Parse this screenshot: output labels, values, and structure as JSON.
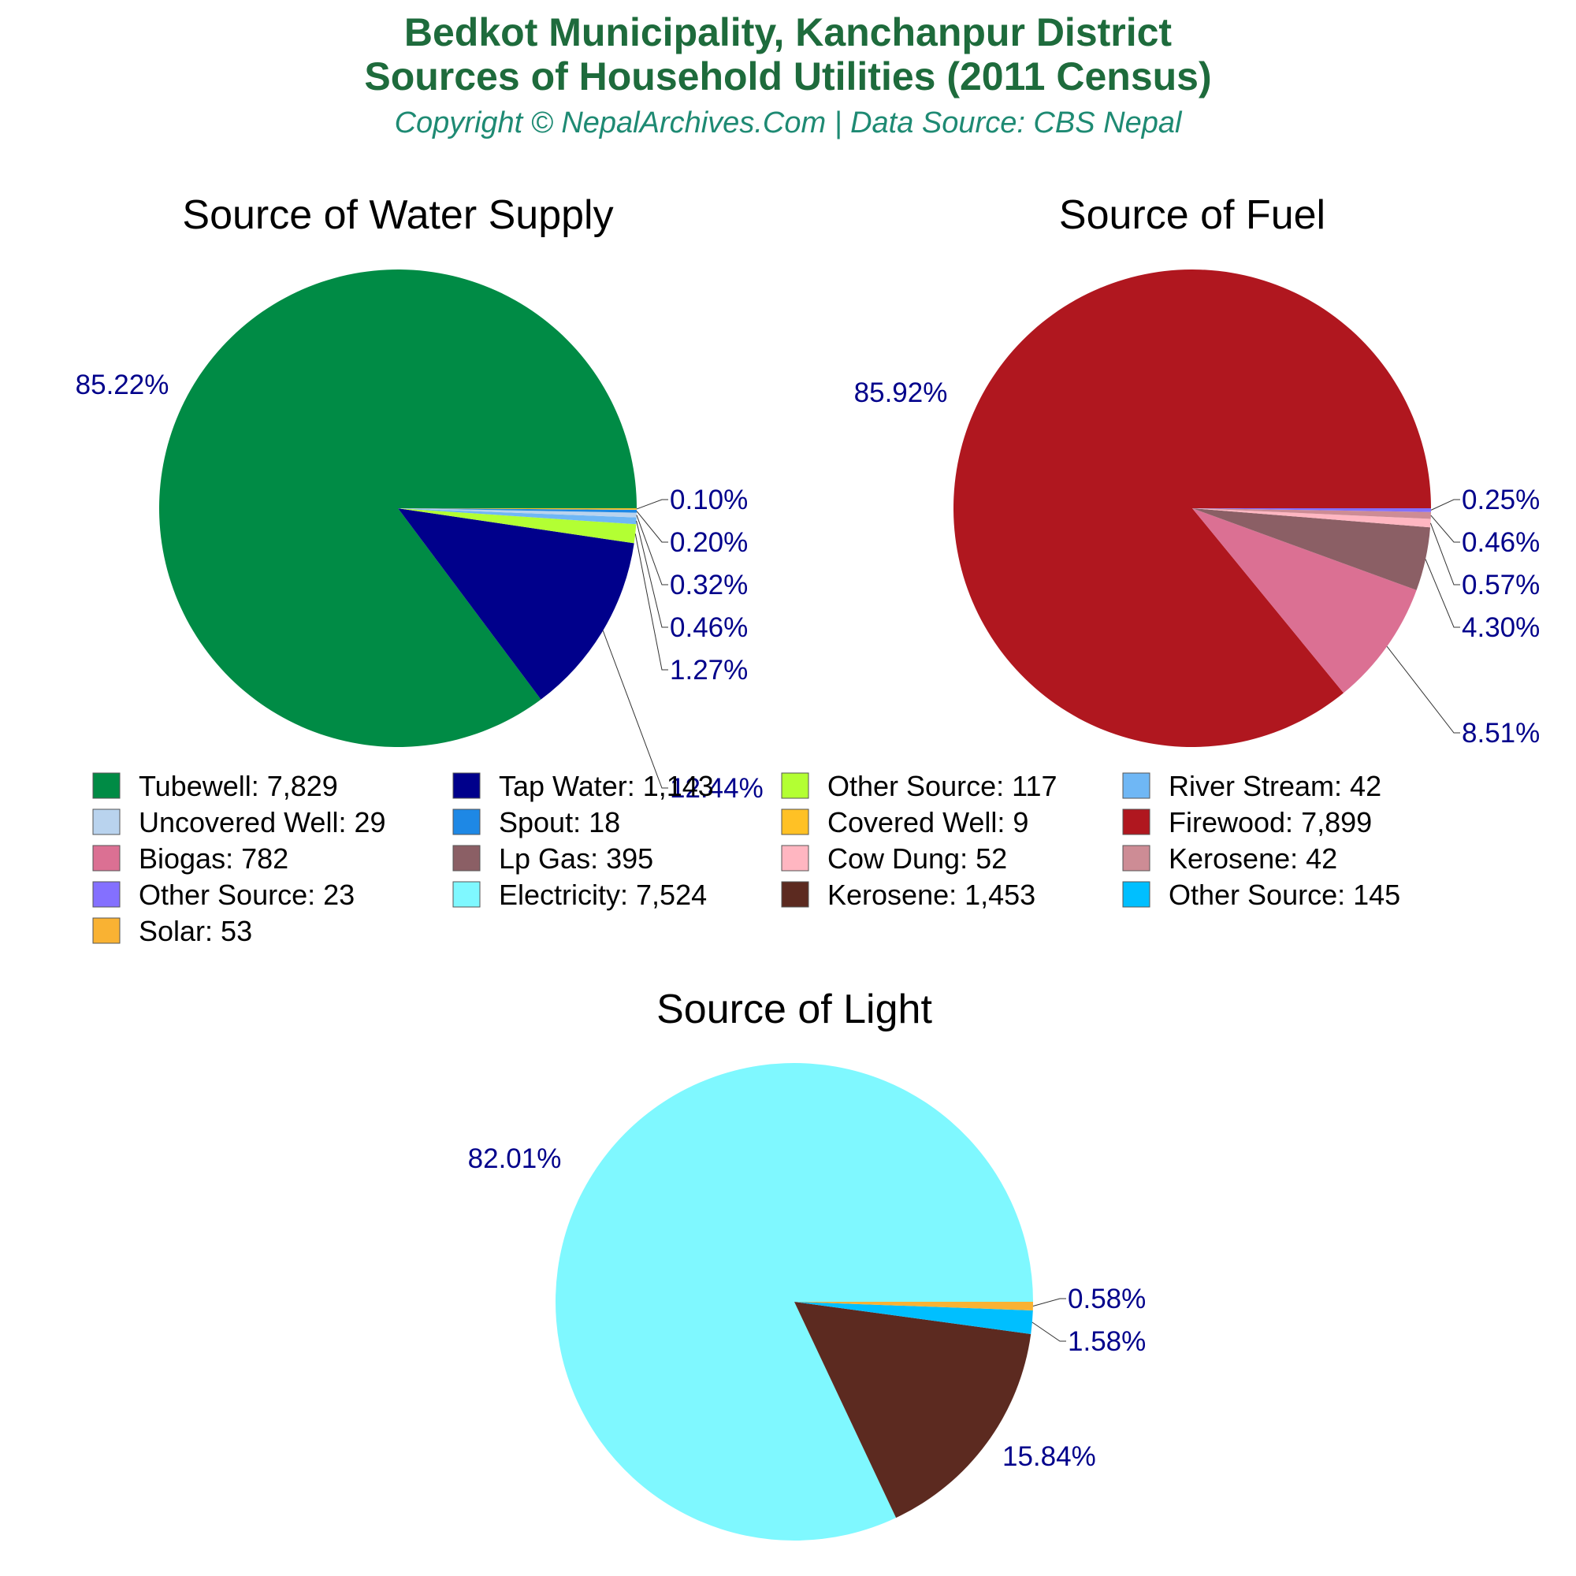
{
  "header": {
    "title_line1": "Bedkot Municipality, Kanchanpur District",
    "title_line2": "Sources of Household Utilities (2011 Census)",
    "copyright": "Copyright © NepalArchives.Com | Data Source: CBS Nepal"
  },
  "chart_data": [
    {
      "type": "pie",
      "title": "Source of Water Supply",
      "slices": [
        {
          "name": "Tubewell",
          "value": 7829,
          "pct_label": "85.22%",
          "color": "#008b45"
        },
        {
          "name": "Tap Water",
          "value": 1143,
          "pct_label": "12.44%",
          "color": "#00008b"
        },
        {
          "name": "Other Source",
          "value": 117,
          "pct_label": "1.27%",
          "color": "#b3ff33"
        },
        {
          "name": "River Stream",
          "value": 42,
          "pct_label": "0.46%",
          "color": "#6fb7f5"
        },
        {
          "name": "Uncovered Well",
          "value": 29,
          "pct_label": "0.32%",
          "color": "#b9d3ee"
        },
        {
          "name": "Spout",
          "value": 18,
          "pct_label": "0.20%",
          "color": "#1e88e5"
        },
        {
          "name": "Covered Well",
          "value": 9,
          "pct_label": "0.10%",
          "color": "#ffc125"
        }
      ]
    },
    {
      "type": "pie",
      "title": "Source of Fuel",
      "slices": [
        {
          "name": "Firewood",
          "value": 7899,
          "pct_label": "85.92%",
          "color": "#b0171f"
        },
        {
          "name": "Biogas",
          "value": 782,
          "pct_label": "8.51%",
          "color": "#db7093"
        },
        {
          "name": "Lp Gas",
          "value": 395,
          "pct_label": "4.30%",
          "color": "#8b5f65"
        },
        {
          "name": "Cow Dung",
          "value": 52,
          "pct_label": "0.57%",
          "color": "#ffb6c1"
        },
        {
          "name": "Kerosene",
          "value": 42,
          "pct_label": "0.46%",
          "color": "#cd8c95"
        },
        {
          "name": "Other Source",
          "value": 23,
          "pct_label": "0.25%",
          "color": "#8470ff"
        }
      ]
    },
    {
      "type": "pie",
      "title": "Source of Light",
      "slices": [
        {
          "name": "Electricity",
          "value": 7524,
          "pct_label": "82.01%",
          "color": "#7ff8ff"
        },
        {
          "name": "Kerosene",
          "value": 1453,
          "pct_label": "15.84%",
          "color": "#5c2a20"
        },
        {
          "name": "Other Source",
          "value": 145,
          "pct_label": "1.58%",
          "color": "#00bfff"
        },
        {
          "name": "Solar",
          "value": 53,
          "pct_label": "0.58%",
          "color": "#f9b233"
        }
      ]
    }
  ],
  "legend": [
    {
      "label": "Tubewell: 7,829",
      "color": "#008b45"
    },
    {
      "label": "Tap Water: 1,143",
      "color": "#00008b"
    },
    {
      "label": "Other Source: 117",
      "color": "#b3ff33"
    },
    {
      "label": "River Stream: 42",
      "color": "#6fb7f5"
    },
    {
      "label": "Uncovered Well: 29",
      "color": "#b9d3ee"
    },
    {
      "label": "Spout: 18",
      "color": "#1e88e5"
    },
    {
      "label": "Covered Well: 9",
      "color": "#ffc125"
    },
    {
      "label": "Firewood: 7,899",
      "color": "#b0171f"
    },
    {
      "label": "Biogas: 782",
      "color": "#db7093"
    },
    {
      "label": "Lp Gas: 395",
      "color": "#8b5f65"
    },
    {
      "label": "Cow Dung: 52",
      "color": "#ffb6c1"
    },
    {
      "label": "Kerosene: 42",
      "color": "#cd8c95"
    },
    {
      "label": "Other Source: 23",
      "color": "#8470ff"
    },
    {
      "label": "Electricity: 7,524",
      "color": "#7ff8ff"
    },
    {
      "label": "Kerosene: 1,453",
      "color": "#5c2a20"
    },
    {
      "label": "Other Source: 145",
      "color": "#00bfff"
    },
    {
      "label": "Solar: 53",
      "color": "#f9b233"
    }
  ]
}
